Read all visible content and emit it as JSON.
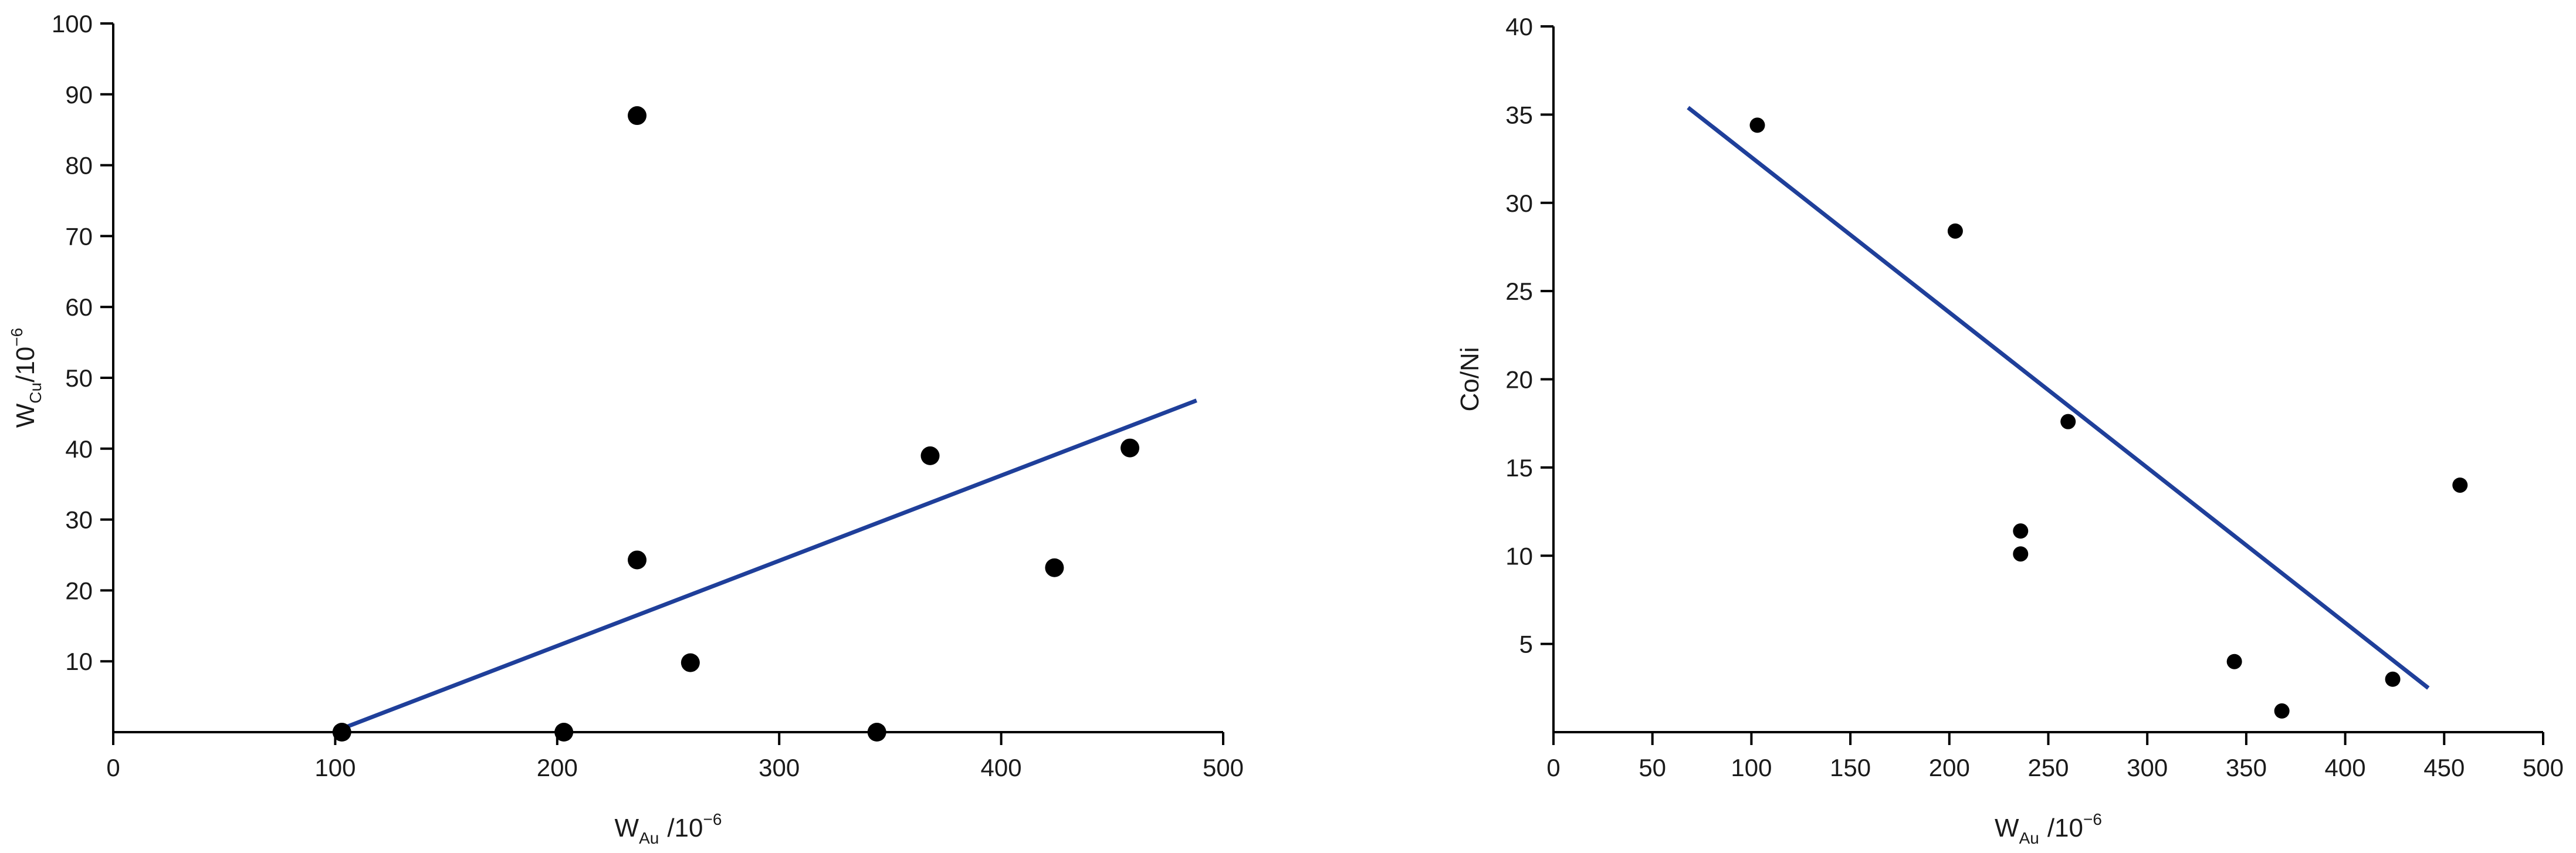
{
  "chart_data": [
    {
      "type": "scatter",
      "title": "",
      "xlabel": {
        "main": "W",
        "sub": "Au",
        "unit": "/10",
        "sup": "−6"
      },
      "ylabel": {
        "main": "W",
        "sub": "Cu",
        "unit": "/10",
        "sup": "−6"
      },
      "xlim": [
        0,
        500
      ],
      "ylim": [
        0,
        100
      ],
      "xticks": [
        0,
        100,
        200,
        300,
        400,
        500
      ],
      "yticks": [
        10,
        20,
        30,
        40,
        50,
        60,
        70,
        80,
        90,
        100
      ],
      "grid": false,
      "point_color": "#000000",
      "line_color": "#1f3f9a",
      "points": [
        {
          "x": 103,
          "y": 0
        },
        {
          "x": 203,
          "y": 0
        },
        {
          "x": 236,
          "y": 87
        },
        {
          "x": 236,
          "y": 24.3
        },
        {
          "x": 260,
          "y": 9.8
        },
        {
          "x": 344,
          "y": 0
        },
        {
          "x": 368,
          "y": 39
        },
        {
          "x": 424,
          "y": 23.2
        },
        {
          "x": 458,
          "y": 40.1
        }
      ],
      "trendline": {
        "x": [
          103,
          488
        ],
        "y": [
          0.5,
          46.8
        ]
      }
    },
    {
      "type": "scatter",
      "title": "",
      "xlabel": {
        "main": "W",
        "sub": "Au",
        "unit": "/10",
        "sup": "−6"
      },
      "ylabel": {
        "main": "Co/Ni"
      },
      "xlim": [
        0,
        500
      ],
      "ylim": [
        0,
        40
      ],
      "xticks": [
        0,
        50,
        100,
        150,
        200,
        250,
        300,
        350,
        400,
        450,
        500
      ],
      "yticks": [
        5,
        10,
        15,
        20,
        25,
        30,
        35,
        40
      ],
      "grid": false,
      "point_color": "#000000",
      "line_color": "#1f3f9a",
      "points": [
        {
          "x": 103,
          "y": 34.4
        },
        {
          "x": 203,
          "y": 28.4
        },
        {
          "x": 236,
          "y": 11.4
        },
        {
          "x": 236,
          "y": 10.1
        },
        {
          "x": 260,
          "y": 17.6
        },
        {
          "x": 344,
          "y": 4
        },
        {
          "x": 368,
          "y": 1.2
        },
        {
          "x": 424,
          "y": 3
        },
        {
          "x": 458,
          "y": 14
        }
      ],
      "trendline": {
        "x": [
          68,
          442
        ],
        "y": [
          35.4,
          2.5
        ]
      }
    }
  ]
}
